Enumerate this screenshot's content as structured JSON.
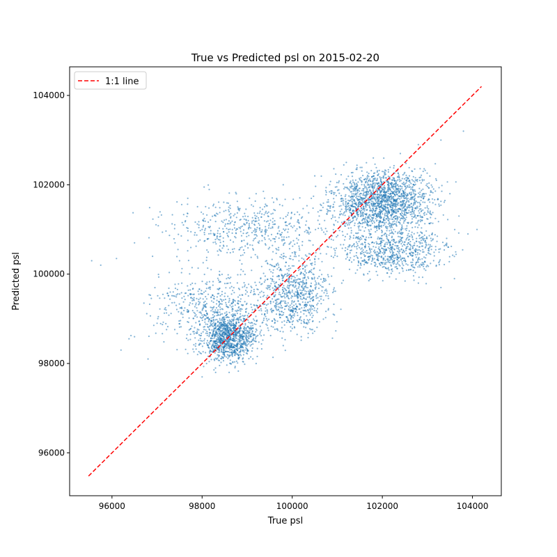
{
  "chart_data": {
    "type": "scatter",
    "title": "True vs Predicted psl on 2015-02-20",
    "xlabel": "True psl",
    "ylabel": "Predicted psl",
    "xlim": [
      95060,
      104640
    ],
    "ylim": [
      95040,
      104640
    ],
    "xticks": [
      96000,
      98000,
      100000,
      102000,
      104000
    ],
    "yticks": [
      96000,
      98000,
      100000,
      102000,
      104000
    ],
    "xtick_labels": [
      "96000",
      "98000",
      "100000",
      "102000",
      "104000"
    ],
    "ytick_labels": [
      "96000",
      "98000",
      "100000",
      "102000",
      "104000"
    ],
    "grid": false,
    "legend": {
      "placement": "top-left",
      "entries": [
        "1:1 line"
      ]
    },
    "series": [
      {
        "kind": "line",
        "style": "dashed",
        "color": "#ff0000",
        "name": "1:1 line",
        "x": [
          95480,
          104200
        ],
        "y": [
          95480,
          104200
        ]
      },
      {
        "kind": "scatter",
        "color": "#1f77b4",
        "note_clusters": [
          {
            "x": [
              97700,
              99500
            ],
            "y": [
              97750,
              99400
            ],
            "weight": 0.2
          },
          {
            "x": [
              99000,
              101200
            ],
            "y": [
              98300,
              100900
            ],
            "weight": 0.12
          },
          {
            "x": [
              100300,
              103700
            ],
            "y": [
              100500,
              102700
            ],
            "weight": 0.33
          },
          {
            "x": [
              96000,
              101000
            ],
            "y": [
              98000,
              100500
            ],
            "weight": 0.12
          },
          {
            "x": [
              96300,
              102000
            ],
            "y": [
              100000,
              102100
            ],
            "weight": 0.1
          },
          {
            "x": [
              100500,
              104000
            ],
            "y": [
              99700,
              101300
            ],
            "weight": 0.13
          }
        ],
        "points_sample": [
          [
            95550,
            100300
          ],
          [
            95750,
            100200
          ],
          [
            96100,
            100350
          ],
          [
            96500,
            100700
          ],
          [
            96200,
            98300
          ],
          [
            96500,
            98600
          ],
          [
            97000,
            98900
          ],
          [
            96800,
            98100
          ],
          [
            97200,
            99200
          ],
          [
            97600,
            99500
          ],
          [
            97900,
            98200
          ],
          [
            98100,
            98000
          ],
          [
            98300,
            97800
          ],
          [
            98500,
            98300
          ],
          [
            98700,
            98800
          ],
          [
            98900,
            99300
          ],
          [
            99100,
            99700
          ],
          [
            99300,
            99900
          ],
          [
            99500,
            100100
          ],
          [
            99800,
            100400
          ],
          [
            100100,
            100800
          ],
          [
            100300,
            101100
          ],
          [
            100600,
            101300
          ],
          [
            100900,
            101500
          ],
          [
            101100,
            101700
          ],
          [
            101400,
            101900
          ],
          [
            101700,
            102100
          ],
          [
            102000,
            102300
          ],
          [
            102300,
            102000
          ],
          [
            102600,
            102200
          ],
          [
            102900,
            101900
          ],
          [
            103200,
            102100
          ],
          [
            103500,
            101800
          ],
          [
            103700,
            101300
          ],
          [
            103900,
            100900
          ],
          [
            104100,
            101000
          ],
          [
            103800,
            103200
          ],
          [
            103300,
            103000
          ],
          [
            102800,
            102900
          ],
          [
            102400,
            102700
          ],
          [
            101800,
            102600
          ],
          [
            101200,
            102500
          ],
          [
            100500,
            102200
          ],
          [
            99800,
            102000
          ],
          [
            99200,
            101800
          ],
          [
            98600,
            101400
          ],
          [
            98000,
            101000
          ],
          [
            97400,
            100700
          ],
          [
            96900,
            100400
          ],
          [
            97500,
            100300
          ],
          [
            98200,
            100100
          ],
          [
            99000,
            99600
          ],
          [
            99600,
            99000
          ],
          [
            100200,
            98600
          ],
          [
            100800,
            99200
          ],
          [
            101100,
            99800
          ],
          [
            101600,
            100300
          ],
          [
            102200,
            100100
          ],
          [
            102800,
            99800
          ],
          [
            103300,
            99700
          ],
          [
            103600,
            99900
          ],
          [
            98000,
            97700
          ],
          [
            98600,
            97800
          ],
          [
            99200,
            98000
          ],
          [
            99800,
            98400
          ],
          [
            100200,
            98900
          ],
          [
            100600,
            99400
          ],
          [
            101000,
            100400
          ]
        ]
      }
    ]
  }
}
